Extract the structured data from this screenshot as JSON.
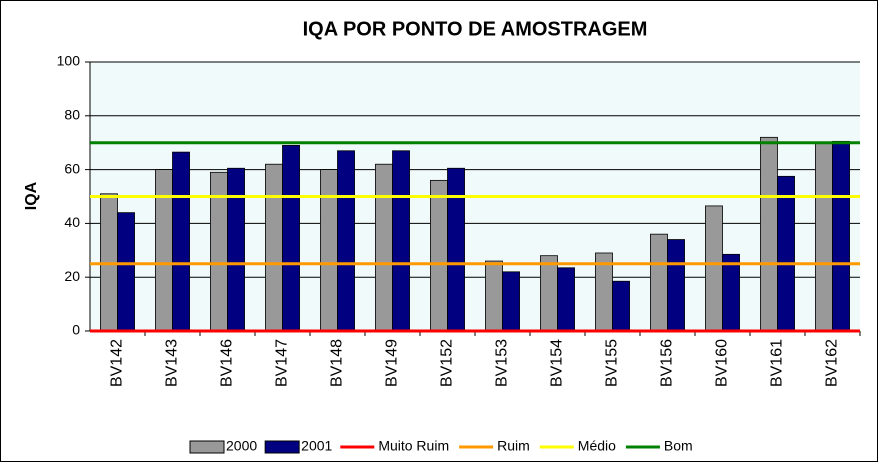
{
  "chart_data": {
    "type": "bar",
    "title": "IQA POR PONTO DE AMOSTRAGEM",
    "y_label": "IQA",
    "categories": [
      "BV142",
      "BV143",
      "BV146",
      "BV147",
      "BV148",
      "BV149",
      "BV152",
      "BV153",
      "BV154",
      "BV155",
      "BV156",
      "BV160",
      "BV161",
      "BV162"
    ],
    "series": [
      {
        "name": "2000",
        "color": "#999999",
        "values": [
          51,
          60,
          59,
          62,
          60,
          62,
          56,
          26,
          28,
          29,
          36,
          46.5,
          72,
          70
        ]
      },
      {
        "name": "2001",
        "color": "#000080",
        "values": [
          44,
          66.5,
          60.5,
          69,
          67,
          67,
          60.5,
          22,
          23.5,
          18.5,
          34,
          28.5,
          57.5,
          70.5
        ]
      }
    ],
    "reference_lines": [
      {
        "name": "Muito Ruim",
        "color": "#ff0000",
        "value": 0
      },
      {
        "name": "Ruim",
        "color": "#ff9900",
        "value": 25
      },
      {
        "name": "Médio",
        "color": "#ffff00",
        "value": 50
      },
      {
        "name": "Bom",
        "color": "#008000",
        "value": 70
      }
    ],
    "ylim": [
      0,
      100
    ],
    "yticks": [
      0,
      20,
      40,
      60,
      80,
      100
    ],
    "grid": true
  }
}
